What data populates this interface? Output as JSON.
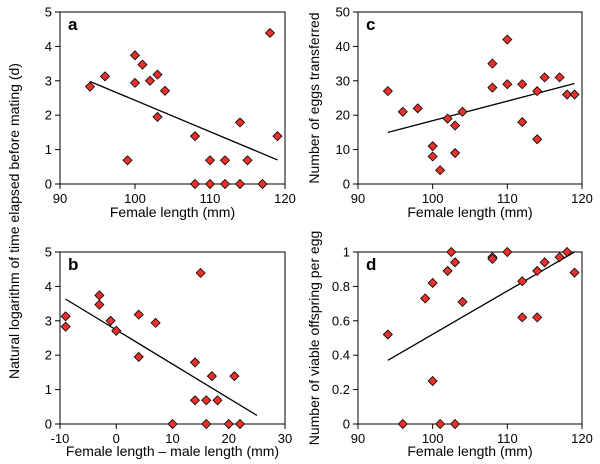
{
  "shared_ylabel_left": "Natural logarithm of time elapsed before mating (d)",
  "marker_color": "#e8312a",
  "chart_data": [
    {
      "id": "a",
      "type": "scatter",
      "letter": "a",
      "xlabel": "Female length (mm)",
      "ylabel": "",
      "xlim": [
        90,
        120
      ],
      "ylim": [
        0,
        5
      ],
      "xticks": [
        90,
        100,
        110,
        120
      ],
      "yticks": [
        0,
        1,
        2,
        3,
        4,
        5
      ],
      "points": [
        [
          94,
          2.83
        ],
        [
          96,
          3.13
        ],
        [
          99,
          0.69
        ],
        [
          100,
          2.94
        ],
        [
          100,
          3.74
        ],
        [
          101,
          3.47
        ],
        [
          102,
          3.0
        ],
        [
          103,
          3.18
        ],
        [
          103,
          1.95
        ],
        [
          104,
          2.71
        ],
        [
          108,
          1.39
        ],
        [
          108,
          0.0
        ],
        [
          110,
          0.0
        ],
        [
          110,
          0.69
        ],
        [
          112,
          0.0
        ],
        [
          112,
          0.69
        ],
        [
          114,
          0.0
        ],
        [
          114,
          1.79
        ],
        [
          115,
          0.69
        ],
        [
          117,
          0.0
        ],
        [
          118,
          4.39
        ],
        [
          119,
          1.39
        ]
      ],
      "trend": [
        [
          94,
          2.98
        ],
        [
          119,
          0.7
        ]
      ]
    },
    {
      "id": "b",
      "type": "scatter",
      "letter": "b",
      "xlabel": "Female length – male length (mm)",
      "ylabel": "",
      "xlim": [
        -10,
        30
      ],
      "ylim": [
        0,
        5
      ],
      "xticks": [
        -10,
        0,
        10,
        20,
        30
      ],
      "yticks": [
        0,
        1,
        2,
        3,
        4,
        5
      ],
      "points": [
        [
          -9,
          3.13
        ],
        [
          -9,
          2.83
        ],
        [
          -3,
          3.74
        ],
        [
          -3,
          3.47
        ],
        [
          -1,
          3.0
        ],
        [
          0,
          2.71
        ],
        [
          4,
          3.18
        ],
        [
          4,
          1.95
        ],
        [
          7,
          2.94
        ],
        [
          10,
          0.0
        ],
        [
          14,
          1.79
        ],
        [
          14,
          0.69
        ],
        [
          15,
          4.39
        ],
        [
          16,
          0.69
        ],
        [
          16,
          0.0
        ],
        [
          17,
          1.39
        ],
        [
          18,
          0.69
        ],
        [
          20,
          0.0
        ],
        [
          21,
          1.39
        ],
        [
          22,
          0.0
        ]
      ],
      "trend": [
        [
          -9,
          3.63
        ],
        [
          25,
          0.25
        ]
      ]
    },
    {
      "id": "c",
      "type": "scatter",
      "letter": "c",
      "xlabel": "Female length (mm)",
      "ylabel": "Number of eggs transferred",
      "xlim": [
        90,
        120
      ],
      "ylim": [
        0,
        50
      ],
      "xticks": [
        90,
        100,
        110,
        120
      ],
      "yticks": [
        0,
        10,
        20,
        30,
        40,
        50
      ],
      "points": [
        [
          94,
          27
        ],
        [
          96,
          21
        ],
        [
          98,
          22
        ],
        [
          100,
          11
        ],
        [
          100,
          8
        ],
        [
          101,
          4
        ],
        [
          102,
          19
        ],
        [
          103,
          9
        ],
        [
          103,
          17
        ],
        [
          104,
          21
        ],
        [
          108,
          35
        ],
        [
          108,
          28
        ],
        [
          110,
          42
        ],
        [
          110,
          29
        ],
        [
          112,
          29
        ],
        [
          112,
          18
        ],
        [
          114,
          27
        ],
        [
          114,
          13
        ],
        [
          115,
          31
        ],
        [
          117,
          31
        ],
        [
          118,
          26
        ],
        [
          119,
          26
        ]
      ],
      "trend": [
        [
          94,
          15
        ],
        [
          119,
          29.2
        ]
      ]
    },
    {
      "id": "d",
      "type": "scatter",
      "letter": "d",
      "xlabel": "Female length (mm)",
      "ylabel": "Number of viable offspring per egg",
      "xlim": [
        90,
        120
      ],
      "ylim": [
        0,
        1
      ],
      "xticks": [
        90,
        100,
        110,
        120
      ],
      "yticks": [
        0,
        0.2,
        0.4,
        0.6,
        0.8,
        1
      ],
      "points": [
        [
          94,
          0.52
        ],
        [
          96,
          0.0
        ],
        [
          99,
          0.73
        ],
        [
          100,
          0.82
        ],
        [
          100,
          0.25
        ],
        [
          101,
          0.0
        ],
        [
          102,
          0.89
        ],
        [
          102.5,
          1.0
        ],
        [
          103,
          0.94
        ],
        [
          103,
          0.0
        ],
        [
          104,
          0.71
        ],
        [
          108,
          0.97
        ],
        [
          108,
          0.96
        ],
        [
          110,
          1.0
        ],
        [
          112,
          0.83
        ],
        [
          112,
          0.62
        ],
        [
          114,
          0.89
        ],
        [
          114,
          0.62
        ],
        [
          115,
          0.94
        ],
        [
          117,
          0.97
        ],
        [
          118,
          1.0
        ],
        [
          119,
          0.88
        ]
      ],
      "trend": [
        [
          94,
          0.37
        ],
        [
          119,
          1.0
        ]
      ]
    }
  ]
}
